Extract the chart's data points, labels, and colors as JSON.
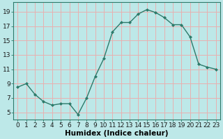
{
  "x": [
    0,
    1,
    2,
    3,
    4,
    5,
    6,
    7,
    8,
    9,
    10,
    11,
    12,
    13,
    14,
    15,
    16,
    17,
    18,
    19,
    20,
    21,
    22,
    23
  ],
  "y": [
    8.5,
    9.0,
    7.5,
    6.5,
    6.0,
    6.2,
    6.2,
    4.7,
    7.0,
    10.0,
    12.5,
    16.2,
    17.5,
    17.5,
    18.7,
    19.3,
    18.9,
    18.2,
    17.2,
    17.2,
    15.5,
    11.7,
    11.3,
    11.0
  ],
  "line_color": "#2d7a6a",
  "marker": "D",
  "marker_size": 2.0,
  "bg_color": "#bde8e8",
  "grid_color": "#e8b0b0",
  "xlabel": "Humidex (Indice chaleur)",
  "ylim": [
    4,
    20
  ],
  "xlim": [
    -0.5,
    23.5
  ],
  "yticks": [
    5,
    7,
    9,
    11,
    13,
    15,
    17,
    19
  ],
  "xticks": [
    0,
    1,
    2,
    3,
    4,
    5,
    6,
    7,
    8,
    9,
    10,
    11,
    12,
    13,
    14,
    15,
    16,
    17,
    18,
    19,
    20,
    21,
    22,
    23
  ],
  "xlabel_fontsize": 7.5,
  "tick_fontsize": 6.5,
  "line_width": 1.0,
  "spine_color": "#2d7a6a"
}
